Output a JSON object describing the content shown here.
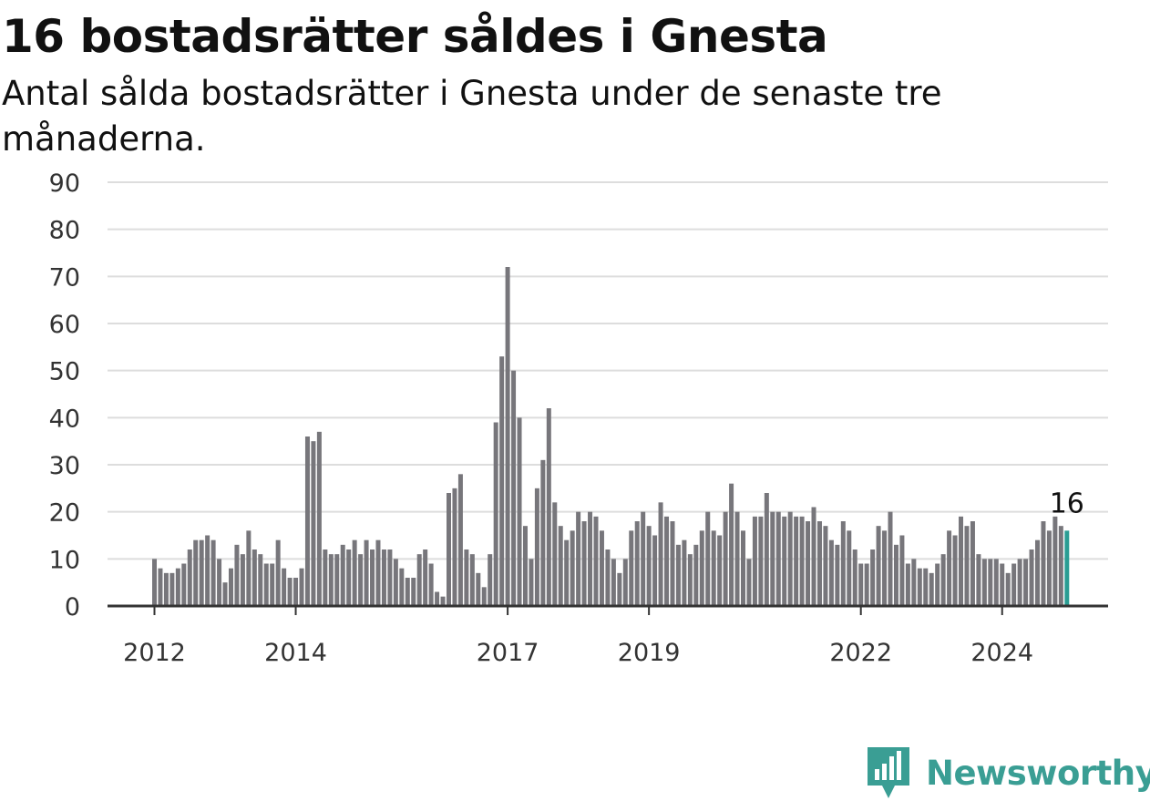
{
  "title": "16 bostadsrätter såldes i Gnesta",
  "subtitle": "Antal sålda bostadsrätter i Gnesta under de senaste tre månaderna.",
  "logo_text": "Newsworthy",
  "colors": {
    "bar": "#77767b",
    "highlight": "#2a9d93",
    "grid": "#dddddd",
    "axis": "#333333"
  },
  "chart_data": {
    "type": "bar",
    "title": "16 bostadsrätter såldes i Gnesta",
    "subtitle": "Antal sålda bostadsrätter i Gnesta under de senaste tre månaderna.",
    "xlabel": "",
    "ylabel": "",
    "ylim": [
      0,
      90
    ],
    "yticks": [
      0,
      10,
      20,
      30,
      40,
      50,
      60,
      70,
      80,
      90
    ],
    "grid": true,
    "x_tick_labels": [
      "2012",
      "2014",
      "2017",
      "2019",
      "2022",
      "2024"
    ],
    "highlight_label": "16",
    "values": [
      10,
      8,
      7,
      7,
      8,
      9,
      12,
      14,
      14,
      15,
      14,
      10,
      5,
      8,
      13,
      11,
      16,
      12,
      11,
      9,
      9,
      14,
      8,
      6,
      6,
      8,
      36,
      35,
      37,
      12,
      11,
      11,
      13,
      12,
      14,
      11,
      14,
      12,
      14,
      12,
      12,
      10,
      8,
      6,
      6,
      11,
      12,
      9,
      3,
      2,
      24,
      25,
      28,
      12,
      11,
      7,
      4,
      11,
      39,
      53,
      72,
      50,
      40,
      17,
      10,
      25,
      31,
      42,
      22,
      17,
      14,
      16,
      20,
      18,
      20,
      19,
      16,
      12,
      10,
      7,
      10,
      16,
      18,
      20,
      17,
      15,
      22,
      19,
      18,
      13,
      14,
      11,
      13,
      16,
      20,
      16,
      15,
      20,
      26,
      20,
      16,
      10,
      19,
      19,
      24,
      20,
      20,
      19,
      20,
      19,
      19,
      18,
      21,
      18,
      17,
      14,
      13,
      18,
      16,
      12,
      9,
      9,
      12,
      17,
      16,
      20,
      13,
      15,
      9,
      10,
      8,
      8,
      7,
      9,
      11,
      16,
      15,
      19,
      17,
      18,
      11,
      10,
      10,
      10,
      9,
      7,
      9,
      10,
      10,
      12,
      14,
      18,
      16,
      19,
      17,
      16
    ],
    "highlight_last": true
  }
}
